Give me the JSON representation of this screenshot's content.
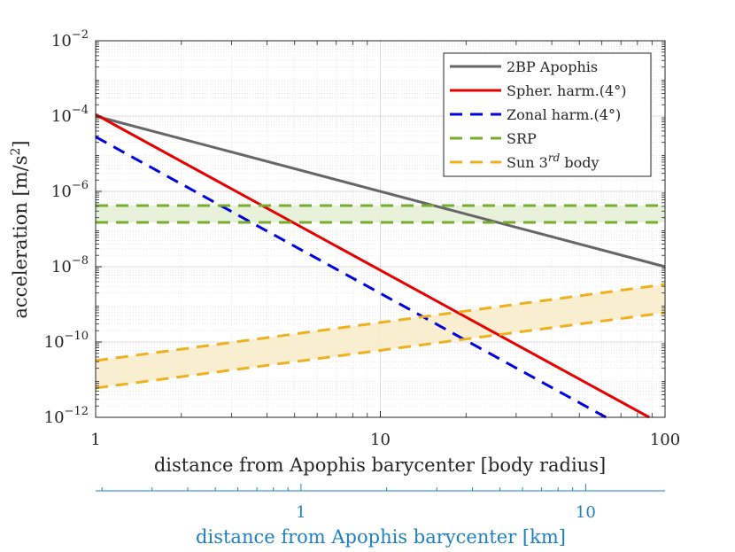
{
  "chart_data": {
    "type": "line",
    "xscale": "log",
    "yscale": "log",
    "xlim": [
      1,
      100
    ],
    "ylim": [
      1e-12,
      0.01
    ],
    "xlabel": "distance from Apophis barycenter [body radius]",
    "ylabel": "acceleration [m/s²]",
    "ylabel_parts": {
      "main": "acceleration [m/s",
      "sup": "2",
      "end": "]"
    },
    "x_ticks": [
      {
        "value": 1,
        "label": "1"
      },
      {
        "value": 10,
        "label": "10"
      },
      {
        "value": 100,
        "label": "100"
      }
    ],
    "y_ticks": [
      {
        "value": 1e-12,
        "base": "10",
        "exp": "−12"
      },
      {
        "value": 1e-10,
        "base": "10",
        "exp": "−10"
      },
      {
        "value": 1e-08,
        "base": "10",
        "exp": "−8"
      },
      {
        "value": 1e-06,
        "base": "10",
        "exp": "−6"
      },
      {
        "value": 0.0001,
        "base": "10",
        "exp": "−4"
      },
      {
        "value": 0.01,
        "base": "10",
        "exp": "−2"
      }
    ],
    "grid": true,
    "legend_position": "top-right",
    "series": [
      {
        "name": "2BP Apophis",
        "legend": {
          "main": "2BP Apophis"
        },
        "color": "#666666",
        "style": "solid",
        "x": [
          1,
          100
        ],
        "y": [
          0.0001,
          1e-08
        ]
      },
      {
        "name": "Spher. harm.(4°)",
        "legend": {
          "main": "Spher. harm.(4°)"
        },
        "color": "#e60000",
        "style": "solid",
        "x": [
          1,
          88
        ],
        "y": [
          0.00011,
          1e-12
        ]
      },
      {
        "name": "Zonal harm.(4°)",
        "legend": {
          "main": "Zonal harm.(4°)"
        },
        "color": "#0000dd",
        "style": "dashed",
        "x": [
          1,
          62
        ],
        "y": [
          2.8e-05,
          1e-12
        ]
      },
      {
        "name": "SRP",
        "legend": {
          "main": "SRP"
        },
        "color": "#77ac30",
        "style": "dashed",
        "x": [
          1,
          100
        ],
        "y": [
          4.2e-07,
          4.2e-07
        ],
        "band_upper_y": [
          4.2e-07,
          4.2e-07
        ],
        "band_lower_y": [
          1.5e-07,
          1.5e-07
        ]
      },
      {
        "name": "Sun 3rd body",
        "legend": {
          "main": "Sun 3",
          "sup": "rd",
          "end": " body"
        },
        "color": "#edb120",
        "style": "dashed",
        "x": [
          1,
          100
        ],
        "y": [
          3.2e-11,
          3.4e-09
        ],
        "band_upper_y": [
          3.2e-11,
          3.4e-09
        ],
        "band_lower_y": [
          6e-12,
          6e-10
        ]
      }
    ],
    "secondary_x_axis": {
      "label": "distance from Apophis barycenter [km]",
      "scale": "log",
      "xlim": [
        0.19,
        19
      ],
      "ticks": [
        {
          "value": 1,
          "label": "1"
        },
        {
          "value": 10,
          "label": "10"
        }
      ],
      "color": "#1f7fbf"
    }
  }
}
